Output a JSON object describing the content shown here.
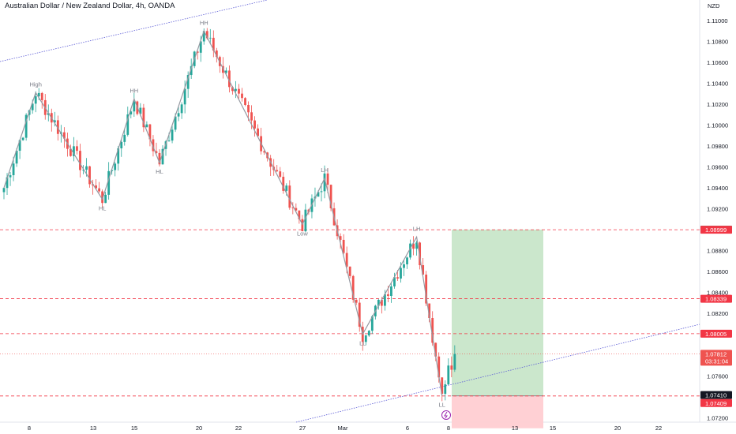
{
  "title": "Australian Dollar / New Zealand Dollar, 4h, OANDA",
  "currency": "NZD",
  "chart_data": {
    "type": "candlestick",
    "symbol": "Australian Dollar / New Zealand Dollar",
    "interval": "4h",
    "source": "OANDA",
    "ylim": [
      1.071,
      1.1122
    ],
    "y_ticks": [
      "1.11000",
      "1.10800",
      "1.10600",
      "1.10400",
      "1.10200",
      "1.10000",
      "1.09800",
      "1.09600",
      "1.09400",
      "1.09200",
      "1.08800",
      "1.08600",
      "1.08400",
      "1.08200",
      "1.07600",
      "1.07200"
    ],
    "x_ticks": [
      "8",
      "13",
      "15",
      "20",
      "22",
      "27",
      "Mar",
      "6",
      "8",
      "13",
      "15",
      "20",
      "22"
    ],
    "zigzag": [
      {
        "label": "",
        "idx": 0,
        "price": 1.094
      },
      {
        "label": "High",
        "idx": 10,
        "price": 1.1031
      },
      {
        "label": "HL",
        "idx": 31,
        "price": 1.0929
      },
      {
        "label": "HH",
        "idx": 41,
        "price": 1.1025
      },
      {
        "label": "HL",
        "idx": 49,
        "price": 1.0964
      },
      {
        "label": "HH",
        "idx": 63,
        "price": 1.109
      },
      {
        "label": "Low",
        "idx": 94,
        "price": 1.0905
      },
      {
        "label": "LH",
        "idx": 101,
        "price": 1.0949
      },
      {
        "label": "LL",
        "idx": 113,
        "price": 1.08
      },
      {
        "label": "LH",
        "idx": 130,
        "price": 1.0893
      },
      {
        "label": "LL",
        "idx": 138,
        "price": 1.0741
      }
    ],
    "price_levels": [
      {
        "value": "1.08999",
        "color": "#f23645"
      },
      {
        "value": "1.08339",
        "color": "#f23645"
      },
      {
        "value": "1.08005",
        "color": "#f23645"
      },
      {
        "value": "1.07409",
        "color": "#f23645"
      }
    ],
    "position": {
      "type": "long",
      "entry": "1.07410",
      "target": "1.09000",
      "stop": 1.071,
      "profit_color": "#c8e6c9",
      "loss_color": "#ffcdd2"
    },
    "current_price": "1.07812",
    "countdown": "03:31:04",
    "colors": {
      "up": "#26a69a",
      "down": "#ef5350",
      "zigzag": "#9598a1",
      "trendline": "#5b5bd6"
    }
  }
}
